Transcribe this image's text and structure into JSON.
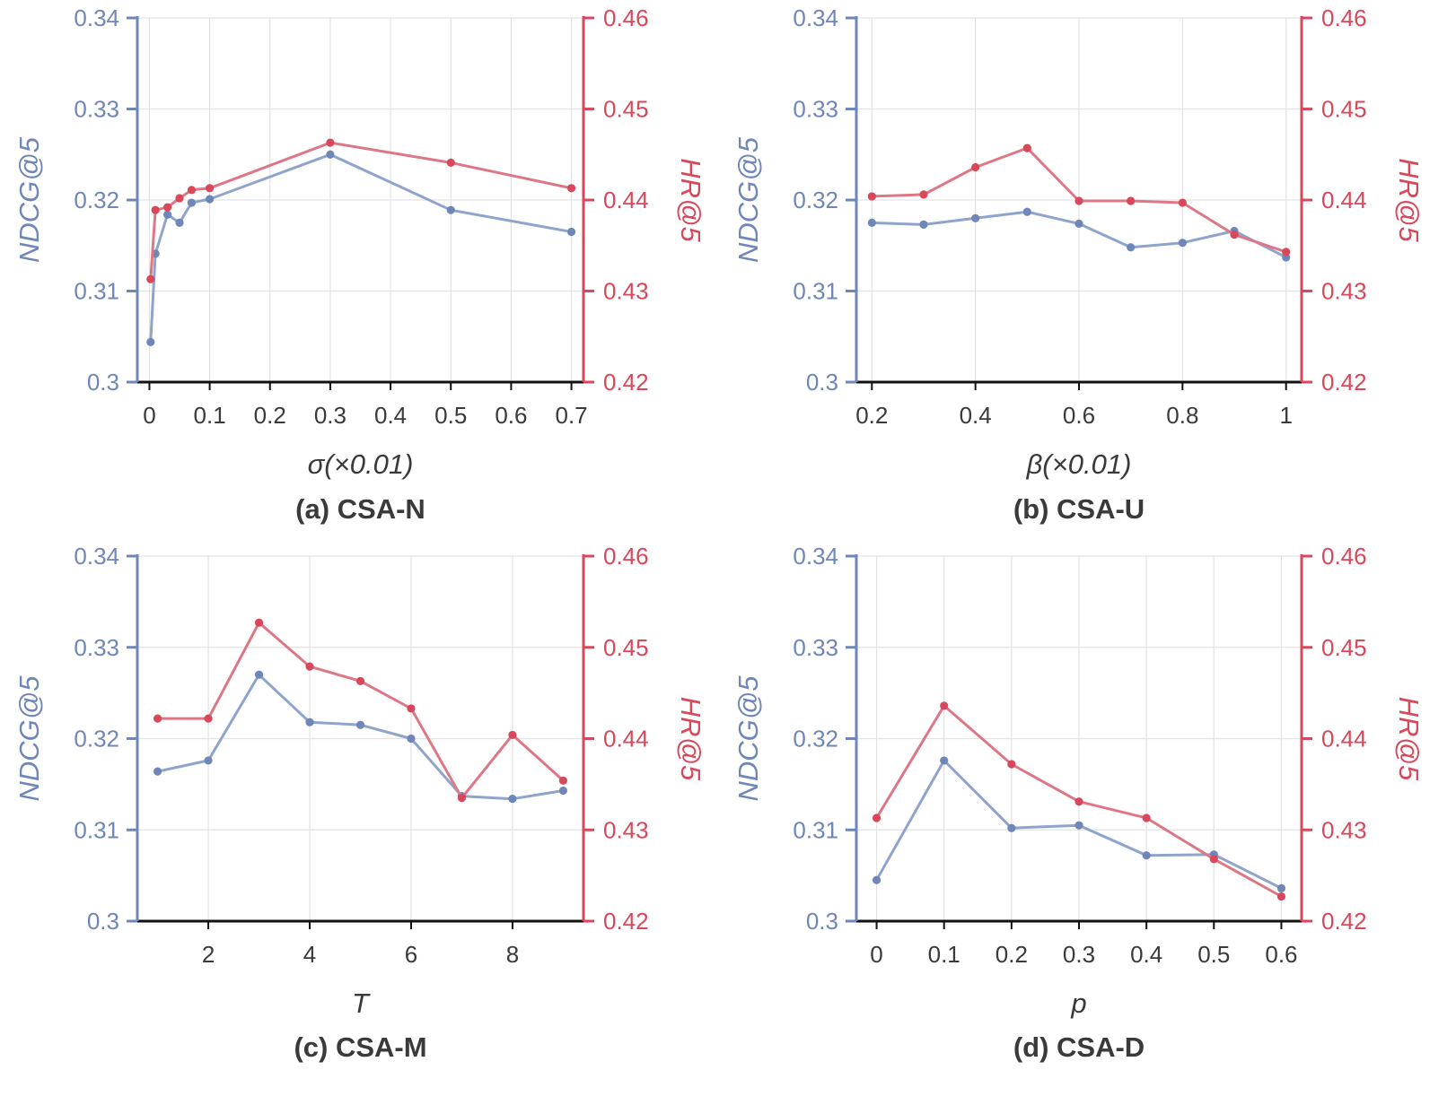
{
  "colors": {
    "left_axis": "#6f86b8",
    "left_line": "#8fa4cc",
    "right_axis": "#d9475a",
    "right_line": "#de7785",
    "grid": "#e3e3e3",
    "text": "#3a3a3a"
  },
  "chart_data": [
    {
      "type": "line",
      "title": "(a) CSA-N",
      "xlabel": "σ(×0.01)",
      "ylabel_left": "NDCG@5",
      "ylabel_right": "HR@5",
      "xlim": [
        -0.02,
        0.72
      ],
      "xticks": [
        0,
        0.1,
        0.2,
        0.3,
        0.4,
        0.5,
        0.6,
        0.7
      ],
      "xtick_labels": [
        "0",
        "0.1",
        "0.2",
        "0.3",
        "0.4",
        "0.5",
        "0.6",
        "0.7"
      ],
      "ylim_left": [
        0.3,
        0.34
      ],
      "yticks_left": [
        "0.3",
        "0.31",
        "0.32",
        "0.33",
        "0.34"
      ],
      "ylim_right": [
        0.42,
        0.46
      ],
      "yticks_right": [
        "0.42",
        "0.43",
        "0.44",
        "0.45",
        "0.46"
      ],
      "grid": true,
      "x": [
        0.002,
        0.01,
        0.03,
        0.05,
        0.07,
        0.1,
        0.3,
        0.5,
        0.7
      ],
      "series": [
        {
          "name": "NDCG@5",
          "axis": "left",
          "values": [
            0.3044,
            0.3141,
            0.3184,
            0.3175,
            0.3197,
            0.3201,
            0.325,
            0.3189,
            0.3165
          ]
        },
        {
          "name": "HR@5",
          "axis": "right",
          "values": [
            0.4313,
            0.4389,
            0.4392,
            0.4402,
            0.4411,
            0.4413,
            0.4463,
            0.4441,
            0.4413
          ]
        }
      ]
    },
    {
      "type": "line",
      "title": "(b) CSA-U",
      "xlabel": "β(×0.01)",
      "ylabel_left": "NDCG@5",
      "ylabel_right": "HR@5",
      "xlim": [
        0.17,
        1.03
      ],
      "xticks": [
        0.2,
        0.4,
        0.6,
        0.8,
        1.0
      ],
      "xtick_labels": [
        "0.2",
        "0.4",
        "0.6",
        "0.8",
        "1"
      ],
      "ylim_left": [
        0.3,
        0.34
      ],
      "yticks_left": [
        "0.3",
        "0.31",
        "0.32",
        "0.33",
        "0.34"
      ],
      "ylim_right": [
        0.42,
        0.46
      ],
      "yticks_right": [
        "0.42",
        "0.43",
        "0.44",
        "0.45",
        "0.46"
      ],
      "grid": true,
      "x": [
        0.2,
        0.3,
        0.4,
        0.5,
        0.6,
        0.7,
        0.8,
        0.9,
        1.0
      ],
      "series": [
        {
          "name": "NDCG@5",
          "axis": "left",
          "values": [
            0.3175,
            0.3173,
            0.318,
            0.3187,
            0.3174,
            0.3148,
            0.3153,
            0.3166,
            0.3137
          ]
        },
        {
          "name": "HR@5",
          "axis": "right",
          "values": [
            0.4404,
            0.4406,
            0.4436,
            0.4457,
            0.4399,
            0.4399,
            0.4397,
            0.4362,
            0.4343
          ]
        }
      ]
    },
    {
      "type": "line",
      "title": "(c) CSA-M",
      "xlabel": "T",
      "ylabel_left": "NDCG@5",
      "ylabel_right": "HR@5",
      "xlim": [
        0.6,
        9.4
      ],
      "xticks": [
        2,
        4,
        6,
        8
      ],
      "xtick_labels": [
        "2",
        "4",
        "6",
        "8"
      ],
      "ylim_left": [
        0.3,
        0.34
      ],
      "yticks_left": [
        "0.3",
        "0.31",
        "0.32",
        "0.33",
        "0.34"
      ],
      "ylim_right": [
        0.42,
        0.46
      ],
      "yticks_right": [
        "0.42",
        "0.43",
        "0.44",
        "0.45",
        "0.46"
      ],
      "grid": true,
      "x": [
        1,
        2,
        3,
        4,
        5,
        6,
        7,
        8,
        9
      ],
      "series": [
        {
          "name": "NDCG@5",
          "axis": "left",
          "values": [
            0.3164,
            0.3176,
            0.327,
            0.3218,
            0.3215,
            0.32,
            0.3137,
            0.3134,
            0.3143
          ]
        },
        {
          "name": "HR@5",
          "axis": "right",
          "values": [
            0.4422,
            0.4422,
            0.4527,
            0.4479,
            0.4463,
            0.4433,
            0.4335,
            0.4404,
            0.4354
          ]
        }
      ]
    },
    {
      "type": "line",
      "title": "(d) CSA-D",
      "xlabel": "p",
      "ylabel_left": "NDCG@5",
      "ylabel_right": "HR@5",
      "xlim": [
        -0.03,
        0.63
      ],
      "xticks": [
        0,
        0.1,
        0.2,
        0.3,
        0.4,
        0.5,
        0.6
      ],
      "xtick_labels": [
        "0",
        "0.1",
        "0.2",
        "0.3",
        "0.4",
        "0.5",
        "0.6"
      ],
      "ylim_left": [
        0.3,
        0.34
      ],
      "yticks_left": [
        "0.3",
        "0.31",
        "0.32",
        "0.33",
        "0.34"
      ],
      "ylim_right": [
        0.42,
        0.46
      ],
      "yticks_right": [
        "0.42",
        "0.43",
        "0.44",
        "0.45",
        "0.46"
      ],
      "grid": true,
      "x": [
        0,
        0.1,
        0.2,
        0.3,
        0.4,
        0.5,
        0.6
      ],
      "series": [
        {
          "name": "NDCG@5",
          "axis": "left",
          "values": [
            0.3045,
            0.3176,
            0.3102,
            0.3105,
            0.3072,
            0.3073,
            0.3036
          ]
        },
        {
          "name": "HR@5",
          "axis": "right",
          "values": [
            0.4313,
            0.4436,
            0.4372,
            0.4331,
            0.4313,
            0.4268,
            0.4227
          ]
        }
      ]
    }
  ]
}
